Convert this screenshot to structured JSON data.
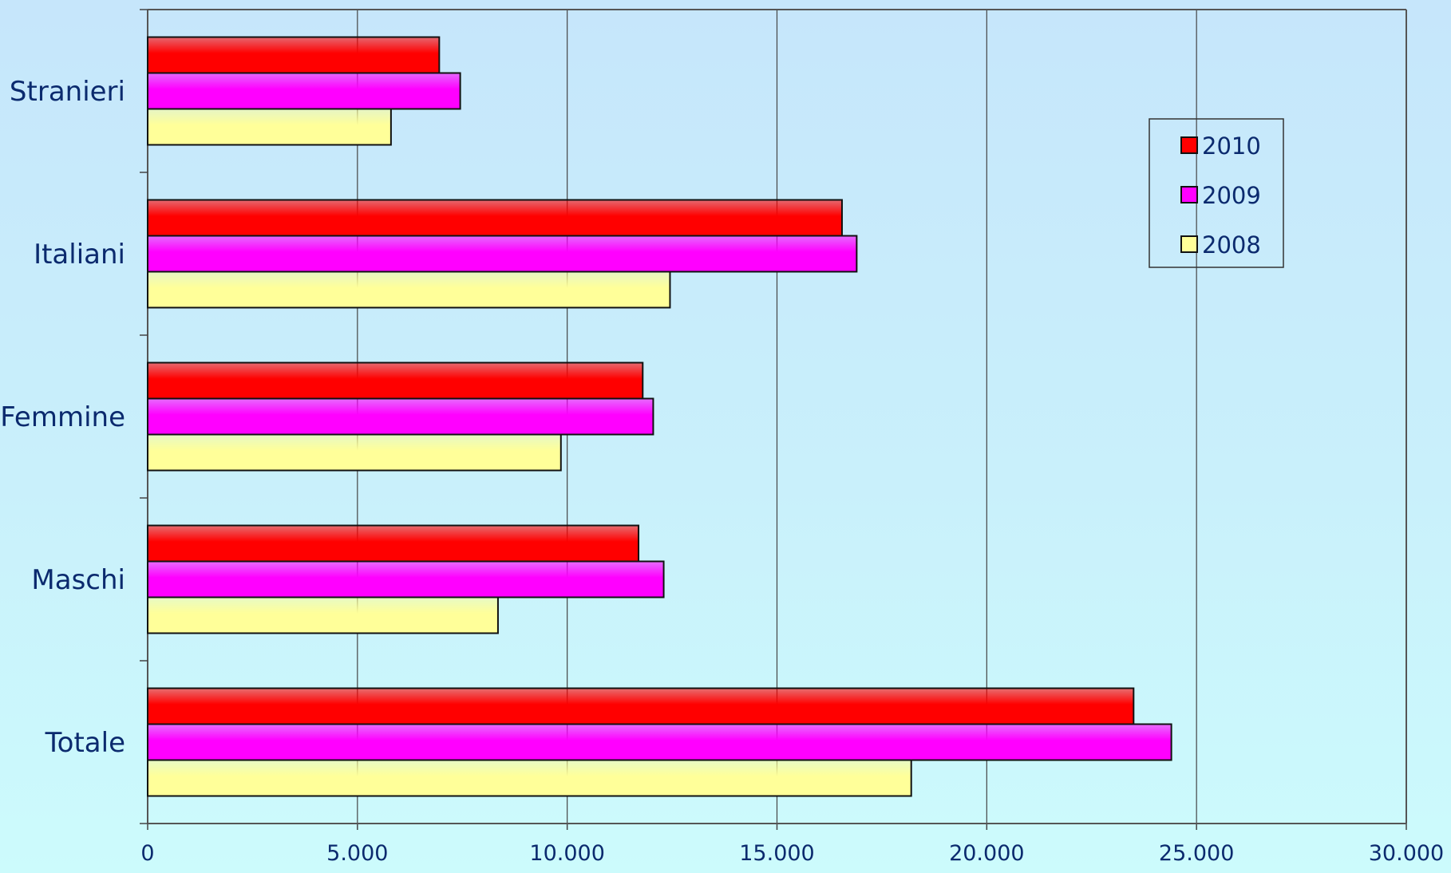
{
  "chart_data": {
    "type": "bar",
    "orientation": "horizontal",
    "categories": [
      "Totale",
      "Maschi",
      "Femmine",
      "Italiani",
      "Stranieri"
    ],
    "series": [
      {
        "name": "2010",
        "color": "#ff0000",
        "values": [
          23500,
          11700,
          11800,
          16550,
          6950
        ]
      },
      {
        "name": "2009",
        "color": "#ff00ff",
        "values": [
          24400,
          12300,
          12050,
          16900,
          7450
        ]
      },
      {
        "name": "2008",
        "color": "#ffff99",
        "values": [
          18200,
          8350,
          9850,
          12450,
          5800
        ]
      }
    ],
    "xlim": [
      0,
      30000
    ],
    "x_ticks": [
      "0",
      "5.000",
      "10.000",
      "15.000",
      "20.000",
      "25.000",
      "30.000"
    ],
    "grid": "vertical",
    "legend_position": "top-right",
    "title": "",
    "xlabel": "",
    "ylabel": ""
  }
}
